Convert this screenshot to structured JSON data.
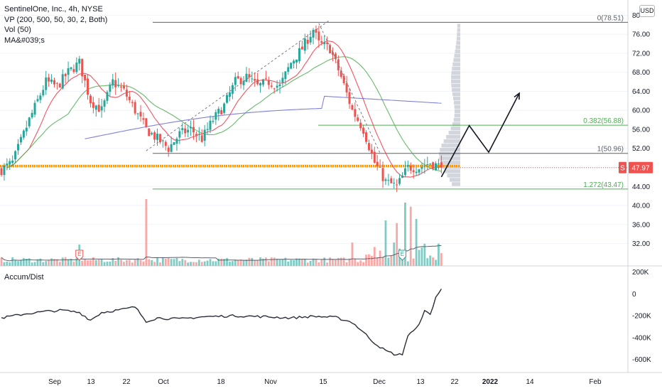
{
  "legend": {
    "symbol": "SentinelOne, Inc., 4h, NYSE",
    "vp": "VP (200, 500, 50, 30, 2, Both)",
    "vol": "Vol (50)",
    "ma": "MA&#039;s"
  },
  "currency": "USD",
  "ad_title": "Accum/Dist",
  "price_badge": {
    "flag": "S",
    "value": "47.97"
  },
  "colors": {
    "up": "#26a69a",
    "down": "#ef5350",
    "vol_up": "#80cbc4",
    "vol_down": "#f7a9a7",
    "ma_fast": "#f23645",
    "ma_mid": "#4caf50",
    "ma_slow": "#6b6bd6",
    "fib_gray": "#5d606b",
    "fib_green": "#4caf50",
    "current": "#ff9800",
    "profile": "#c8cbd3"
  },
  "chart_data": [
    {
      "type": "candlestick",
      "title": "SentinelOne, Inc., 4h, NYSE",
      "y_ticks": [
        "80",
        "76.00",
        "72.00",
        "68.00",
        "64.00",
        "60.00",
        "56.00",
        "52.00",
        "48.00",
        "44.00",
        "40.00",
        "36.00",
        "32.00"
      ],
      "x_ticks": [
        "Sep",
        "13",
        "22",
        "Oct",
        "18",
        "Nov",
        "15",
        "Dec",
        "13",
        "22",
        "2022",
        "14",
        "Feb"
      ],
      "ylim": [
        28.5,
        80.5
      ],
      "last_price": 47.97,
      "levels": [
        {
          "label": "0(78.51)",
          "value": 78.51
        },
        {
          "label": "0.382(56.88)",
          "value": 56.88
        },
        {
          "label": "1(50.96)",
          "value": 50.96
        },
        {
          "label": "1.272(43.47)",
          "value": 43.47
        }
      ],
      "anchors": [
        {
          "t": 0,
          "p": 47.5
        },
        {
          "t": 4,
          "p": 49
        },
        {
          "t": 10,
          "p": 58
        },
        {
          "t": 16,
          "p": 66
        },
        {
          "t": 20,
          "p": 65
        },
        {
          "t": 24,
          "p": 68
        },
        {
          "t": 28,
          "p": 70
        },
        {
          "t": 32,
          "p": 62
        },
        {
          "t": 36,
          "p": 60
        },
        {
          "t": 40,
          "p": 66
        },
        {
          "t": 44,
          "p": 64
        },
        {
          "t": 48,
          "p": 60
        },
        {
          "t": 52,
          "p": 56
        },
        {
          "t": 56,
          "p": 54
        },
        {
          "t": 60,
          "p": 52
        },
        {
          "t": 64,
          "p": 55
        },
        {
          "t": 68,
          "p": 56
        },
        {
          "t": 72,
          "p": 54
        },
        {
          "t": 76,
          "p": 58
        },
        {
          "t": 80,
          "p": 61
        },
        {
          "t": 84,
          "p": 66
        },
        {
          "t": 88,
          "p": 67
        },
        {
          "t": 92,
          "p": 65
        },
        {
          "t": 96,
          "p": 66
        },
        {
          "t": 100,
          "p": 65
        },
        {
          "t": 104,
          "p": 70
        },
        {
          "t": 108,
          "p": 73
        },
        {
          "t": 112,
          "p": 77
        },
        {
          "t": 114,
          "p": 74
        },
        {
          "t": 118,
          "p": 73
        },
        {
          "t": 122,
          "p": 67
        },
        {
          "t": 126,
          "p": 60
        },
        {
          "t": 130,
          "p": 56
        },
        {
          "t": 134,
          "p": 49
        },
        {
          "t": 138,
          "p": 45
        },
        {
          "t": 142,
          "p": 44
        },
        {
          "t": 146,
          "p": 48
        },
        {
          "t": 150,
          "p": 48
        },
        {
          "t": 154,
          "p": 49
        },
        {
          "t": 158,
          "p": 47.97
        }
      ],
      "moving_averages": [
        {
          "name": "MA fast",
          "window": 20,
          "color_key": "ma_fast"
        },
        {
          "name": "MA mid",
          "window": 50,
          "color_key": "ma_mid"
        },
        {
          "name": "MA slow",
          "window": 200,
          "color_key": "ma_slow"
        }
      ],
      "projection": [
        {
          "t": 158,
          "p": 46
        },
        {
          "t": 168,
          "p": 56.8
        },
        {
          "t": 175,
          "p": 51.2
        },
        {
          "t": 186,
          "p": 63.6
        }
      ],
      "earnings_markers": [
        {
          "t": 28,
          "label": "E"
        },
        {
          "t": 144,
          "label": "E"
        }
      ]
    },
    {
      "type": "bar",
      "title": "Vol (50)",
      "note": "volume bars follow the candle directions; spike values in relative units",
      "spikes": [
        {
          "t": 28,
          "v": 0.32
        },
        {
          "t": 52,
          "v": 1.0
        },
        {
          "t": 126,
          "v": 0.35
        },
        {
          "t": 138,
          "v": 0.58
        },
        {
          "t": 142,
          "v": 0.6
        },
        {
          "t": 145,
          "v": 0.85
        },
        {
          "t": 147,
          "v": 0.73
        },
        {
          "t": 149,
          "v": 0.68
        }
      ]
    },
    {
      "type": "line",
      "title": "Accum/Dist",
      "y_ticks": [
        "200K",
        "0",
        "-200K",
        "-400K",
        "-600K"
      ],
      "ylim": [
        -680000,
        230000
      ],
      "anchors": [
        {
          "t": 0,
          "v": -220000
        },
        {
          "t": 8,
          "v": -185000
        },
        {
          "t": 16,
          "v": -160000
        },
        {
          "t": 22,
          "v": -150000
        },
        {
          "t": 28,
          "v": -170000
        },
        {
          "t": 32,
          "v": -240000
        },
        {
          "t": 36,
          "v": -170000
        },
        {
          "t": 44,
          "v": -140000
        },
        {
          "t": 48,
          "v": -120000
        },
        {
          "t": 52,
          "v": -250000
        },
        {
          "t": 56,
          "v": -220000
        },
        {
          "t": 64,
          "v": -230000
        },
        {
          "t": 72,
          "v": -210000
        },
        {
          "t": 84,
          "v": -200000
        },
        {
          "t": 96,
          "v": -210000
        },
        {
          "t": 104,
          "v": -220000
        },
        {
          "t": 112,
          "v": -205000
        },
        {
          "t": 120,
          "v": -215000
        },
        {
          "t": 126,
          "v": -260000
        },
        {
          "t": 130,
          "v": -350000
        },
        {
          "t": 134,
          "v": -450000
        },
        {
          "t": 138,
          "v": -520000
        },
        {
          "t": 142,
          "v": -560000
        },
        {
          "t": 144,
          "v": -550000
        },
        {
          "t": 146,
          "v": -380000
        },
        {
          "t": 149,
          "v": -320000
        },
        {
          "t": 152,
          "v": -160000
        },
        {
          "t": 154,
          "v": -190000
        },
        {
          "t": 156,
          "v": -30000
        },
        {
          "t": 158,
          "v": 40000
        }
      ]
    }
  ]
}
